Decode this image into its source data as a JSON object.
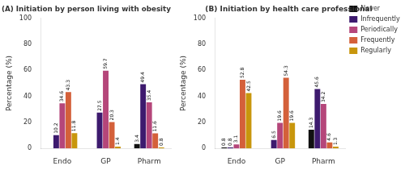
{
  "chart_data": [
    {
      "type": "bar",
      "title": "(A) Initiation by person living with obesity",
      "categories": [
        "Endo",
        "GP",
        "Pharm"
      ],
      "ylabel": "Percentage (%)",
      "ylim": [
        0,
        100
      ],
      "yticks": [
        0,
        20,
        40,
        60,
        80,
        100
      ],
      "grid": false,
      "data_labels": true,
      "series": [
        {
          "name": "Never",
          "color": "#111111",
          "values": [
            0,
            0,
            3.4
          ],
          "value_labels": [
            null,
            null,
            "3.4"
          ]
        },
        {
          "name": "Infrequently",
          "color": "#3d1a6e",
          "values": [
            10.2,
            27.5,
            49.4
          ],
          "value_labels": [
            "10.2",
            "27.5",
            "49.4"
          ]
        },
        {
          "name": "Periodically",
          "color": "#b5467a",
          "values": [
            34.6,
            59.7,
            35.4
          ],
          "value_labels": [
            "34.6",
            "59.7",
            "35.4"
          ]
        },
        {
          "name": "Frequently",
          "color": "#d4603a",
          "values": [
            43.3,
            20.3,
            11.6
          ],
          "value_labels": [
            "43.3",
            "20.3",
            "11.6"
          ]
        },
        {
          "name": "Regularly",
          "color": "#c8960c",
          "values": [
            11.8,
            1.4,
            0.8
          ],
          "value_labels": [
            "11.8",
            "1.4",
            "0.8"
          ]
        }
      ]
    },
    {
      "type": "bar",
      "title": "(B) Initiation by health care professional",
      "categories": [
        "Endo",
        "GP",
        "Pharm"
      ],
      "ylabel": "Percentage (%)",
      "ylim": [
        0,
        100
      ],
      "yticks": [
        0,
        20,
        40,
        60,
        80,
        100
      ],
      "grid": false,
      "data_labels": true,
      "legend": "right",
      "series": [
        {
          "name": "Never",
          "color": "#111111",
          "values": [
            0.8,
            0,
            14.3
          ],
          "value_labels": [
            "0.8",
            null,
            "14.3"
          ]
        },
        {
          "name": "Infrequently",
          "color": "#3d1a6e",
          "values": [
            0.8,
            6.5,
            45.6
          ],
          "value_labels": [
            "0.8",
            "6.5",
            "45.6"
          ]
        },
        {
          "name": "Periodically",
          "color": "#b5467a",
          "values": [
            3.1,
            19.6,
            34.2
          ],
          "value_labels": [
            "3.1",
            "19.6",
            "34.2"
          ]
        },
        {
          "name": "Frequently",
          "color": "#d4603a",
          "values": [
            52.8,
            54.3,
            4.6
          ],
          "value_labels": [
            "52.8",
            "54.3",
            "4.6"
          ]
        },
        {
          "name": "Regularly",
          "color": "#c8960c",
          "values": [
            42.5,
            19.6,
            1.3
          ],
          "value_labels": [
            "42.5",
            "19.6",
            "1.3"
          ]
        }
      ]
    }
  ]
}
